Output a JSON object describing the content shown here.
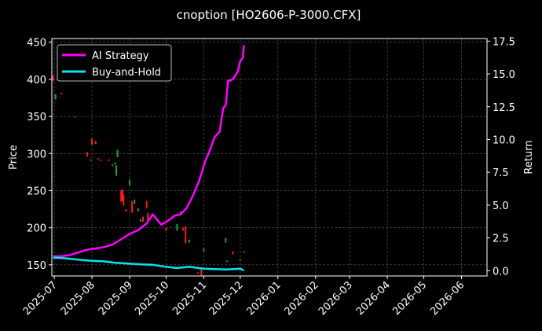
{
  "chart_data": {
    "type": "line",
    "title": "cnoption [HO2606-P-3000.CFX]",
    "ylabel_left": "Price",
    "ylabel_right": "Return",
    "xlim": [
      "2025-06-29",
      "2026-06-22"
    ],
    "ylim_left": [
      135,
      455
    ],
    "ylim_right": [
      -0.4,
      17.7
    ],
    "x_tick_labels": [
      "2025-07",
      "2025-08",
      "2025-09",
      "2025-10",
      "2025-11",
      "2025-12",
      "2026-01",
      "2026-02",
      "2026-03",
      "2026-04",
      "2026-05",
      "2026-06"
    ],
    "y_left_ticks": [
      150,
      200,
      250,
      300,
      350,
      400,
      450
    ],
    "y_right_ticks": [
      "0.0",
      "2.5",
      "5.0",
      "7.5",
      "10.0",
      "12.5",
      "15.0",
      "17.5"
    ],
    "grid": true,
    "legend_position": "top-left",
    "colors": {
      "ai": "#ff00ff",
      "bh": "#00e5ee",
      "up": "#1ea51e",
      "down": "#ff1a1a",
      "grid": "#5a5a5a"
    },
    "series": [
      {
        "name": "AI Strategy",
        "axis": "right",
        "x": [
          "2025-06-30",
          "2025-07-07",
          "2025-07-14",
          "2025-07-21",
          "2025-07-28",
          "2025-08-04",
          "2025-08-11",
          "2025-08-18",
          "2025-08-25",
          "2025-09-01",
          "2025-09-08",
          "2025-09-15",
          "2025-09-20",
          "2025-09-27",
          "2025-10-04",
          "2025-10-08",
          "2025-10-13",
          "2025-10-18",
          "2025-10-23",
          "2025-10-28",
          "2025-11-02",
          "2025-11-06",
          "2025-11-10",
          "2025-11-14",
          "2025-11-17",
          "2025-11-19",
          "2025-11-21",
          "2025-11-23",
          "2025-11-25",
          "2025-11-27",
          "2025-11-29",
          "2025-12-01",
          "2025-12-03",
          "2025-12-04"
        ],
        "values": [
          1.1,
          1.1,
          1.2,
          1.4,
          1.6,
          1.7,
          1.8,
          2.0,
          2.4,
          2.8,
          3.1,
          3.6,
          4.3,
          3.5,
          3.9,
          4.2,
          4.3,
          4.8,
          5.7,
          6.8,
          8.3,
          9.2,
          10.2,
          10.6,
          12.4,
          12.6,
          14.5,
          14.5,
          14.6,
          14.9,
          15.2,
          16.0,
          16.2,
          17.2
        ]
      },
      {
        "name": "Buy-and-Hold",
        "axis": "right",
        "x": [
          "2025-06-30",
          "2025-07-10",
          "2025-07-20",
          "2025-08-01",
          "2025-08-10",
          "2025-08-20",
          "2025-08-30",
          "2025-09-10",
          "2025-09-20",
          "2025-10-01",
          "2025-10-10",
          "2025-10-20",
          "2025-11-01",
          "2025-11-10",
          "2025-11-20",
          "2025-12-01",
          "2025-12-04"
        ],
        "values": [
          1.0,
          0.95,
          0.85,
          0.75,
          0.72,
          0.6,
          0.55,
          0.48,
          0.45,
          0.3,
          0.2,
          0.3,
          0.15,
          0.12,
          0.1,
          0.15,
          0.02
        ]
      }
    ],
    "candles": [
      {
        "x": "2025-06-30",
        "o": 405,
        "c": 398
      },
      {
        "x": "2025-07-02",
        "o": 373,
        "c": 380
      },
      {
        "x": "2025-07-07",
        "o": 382,
        "c": 380
      },
      {
        "x": "2025-07-18",
        "o": 350,
        "c": 349
      },
      {
        "x": "2025-07-28",
        "o": 302,
        "c": 296
      },
      {
        "x": "2025-07-31",
        "o": 291,
        "c": 292
      },
      {
        "x": "2025-08-01",
        "o": 320,
        "c": 312
      },
      {
        "x": "2025-08-04",
        "o": 317,
        "c": 313
      },
      {
        "x": "2025-08-06",
        "o": 294,
        "c": 292
      },
      {
        "x": "2025-08-08",
        "o": 292,
        "c": 290
      },
      {
        "x": "2025-08-15",
        "o": 292,
        "c": 290
      },
      {
        "x": "2025-08-18",
        "o": 283,
        "c": 285
      },
      {
        "x": "2025-08-20",
        "o": 285,
        "c": 288
      },
      {
        "x": "2025-08-21",
        "o": 270,
        "c": 284
      },
      {
        "x": "2025-08-22",
        "o": 295,
        "c": 305
      },
      {
        "x": "2025-08-25",
        "o": 250,
        "c": 235
      },
      {
        "x": "2025-08-26",
        "o": 252,
        "c": 236
      },
      {
        "x": "2025-08-27",
        "o": 245,
        "c": 230
      },
      {
        "x": "2025-08-29",
        "o": 225,
        "c": 222
      },
      {
        "x": "2025-09-01",
        "o": 257,
        "c": 265
      },
      {
        "x": "2025-09-03",
        "o": 236,
        "c": 220
      },
      {
        "x": "2025-09-05",
        "o": 232,
        "c": 238
      },
      {
        "x": "2025-09-08",
        "o": 222,
        "c": 226
      },
      {
        "x": "2025-09-10",
        "o": 208,
        "c": 212
      },
      {
        "x": "2025-09-12",
        "o": 215,
        "c": 208
      },
      {
        "x": "2025-09-15",
        "o": 236,
        "c": 226
      },
      {
        "x": "2025-09-16",
        "o": 220,
        "c": 210
      },
      {
        "x": "2025-10-01",
        "o": 200,
        "c": 196
      },
      {
        "x": "2025-10-10",
        "o": 196,
        "c": 205
      },
      {
        "x": "2025-10-13",
        "o": 218,
        "c": 222
      },
      {
        "x": "2025-10-15",
        "o": 200,
        "c": 196
      },
      {
        "x": "2025-10-17",
        "o": 202,
        "c": 179
      },
      {
        "x": "2025-10-20",
        "o": 180,
        "c": 184
      },
      {
        "x": "2025-10-27",
        "o": 140,
        "c": 138
      },
      {
        "x": "2025-10-30",
        "o": 144,
        "c": 135
      },
      {
        "x": "2025-11-01",
        "o": 168,
        "c": 172
      },
      {
        "x": "2025-11-19",
        "o": 180,
        "c": 186
      },
      {
        "x": "2025-11-20",
        "o": 154,
        "c": 156
      },
      {
        "x": "2025-11-25",
        "o": 168,
        "c": 164
      },
      {
        "x": "2025-12-01",
        "o": 157,
        "c": 155
      },
      {
        "x": "2025-12-04",
        "o": 168,
        "c": 166
      }
    ]
  }
}
